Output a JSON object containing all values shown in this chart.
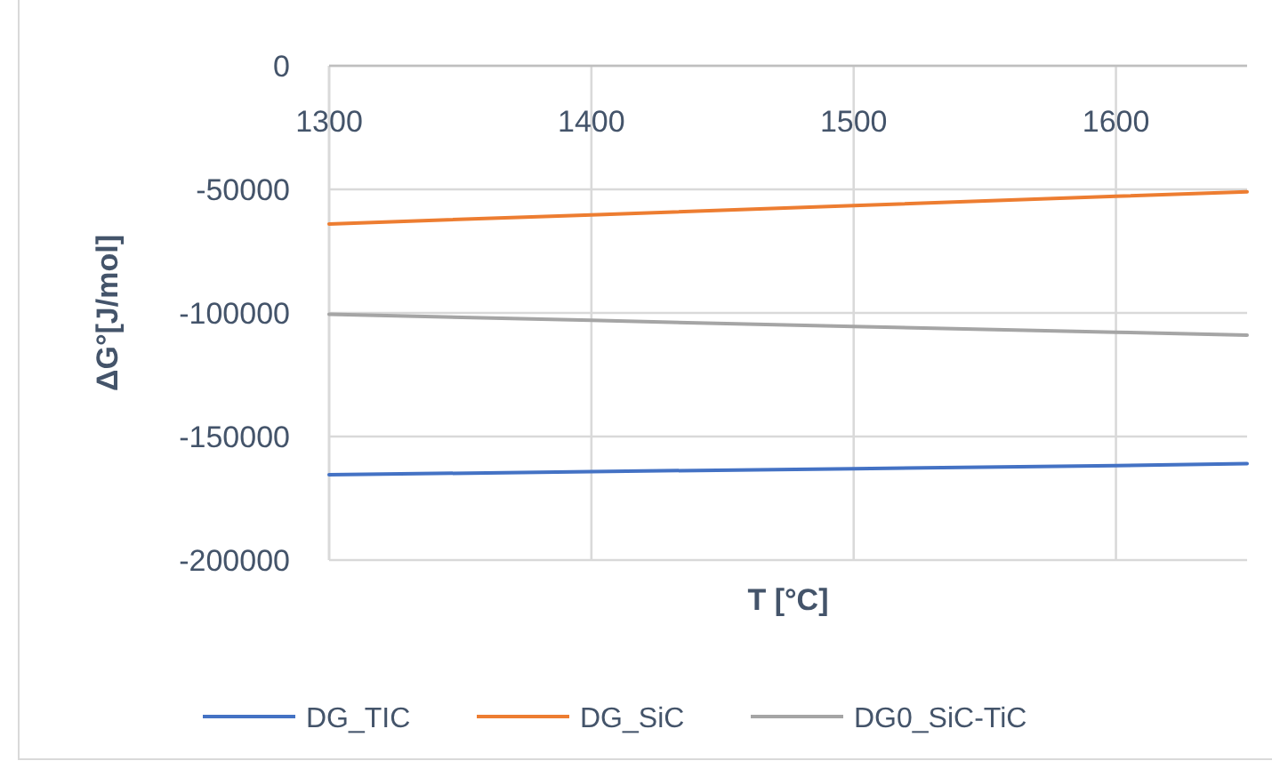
{
  "chart_data": {
    "type": "line",
    "xlabel": "T [°C]",
    "ylabel": "ΔG°[J/mol]",
    "x": [
      1300,
      1400,
      1500,
      1600,
      1650
    ],
    "xlim": [
      1300,
      1650
    ],
    "xticks": [
      1300,
      1400,
      1500,
      1600
    ],
    "ylim": [
      -200000,
      0
    ],
    "yticks": [
      -200000,
      -150000,
      -100000,
      -50000,
      0
    ],
    "grid": true,
    "legend": "bottom",
    "marker": "none",
    "line_style": "solid",
    "series": [
      {
        "name": "DG_TIC",
        "color": "#4472c4",
        "values": [
          -165500,
          -164200,
          -163000,
          -161800,
          -161000
        ]
      },
      {
        "name": "DG_SiC",
        "color": "#ed7d31",
        "values": [
          -64000,
          -60300,
          -56600,
          -52800,
          -51000
        ]
      },
      {
        "name": "DG0_SiC-TiC",
        "color": "#a5a5a5",
        "values": [
          -100500,
          -103000,
          -105500,
          -107800,
          -109000
        ]
      }
    ]
  }
}
